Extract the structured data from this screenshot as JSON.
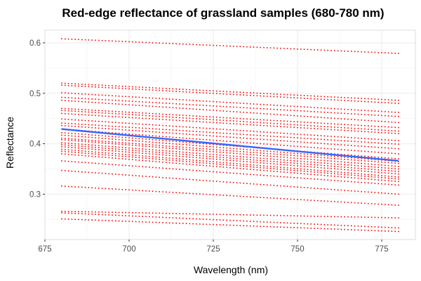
{
  "chart_data": {
    "type": "scatter",
    "title": "Red-edge reflectance of grassland samples (680-780 nm)",
    "xlabel": "Wavelength (nm)",
    "ylabel": "Reflectance",
    "xlim": [
      675,
      785
    ],
    "ylim": [
      0.21,
      0.625
    ],
    "x_ticks": [
      675,
      700,
      725,
      750,
      775
    ],
    "y_ticks": [
      0.3,
      0.4,
      0.5,
      0.6
    ],
    "x_tick_labels": [
      "675",
      "700",
      "725",
      "750",
      "775"
    ],
    "y_tick_labels": [
      "0.3",
      "0.4",
      "0.5",
      "0.6"
    ],
    "x_range": [
      680,
      780
    ],
    "x_step": 1,
    "grid": true,
    "point_color": "#ff0000",
    "fit_color": "#3366ff",
    "series_endpoints": [
      [
        0.608,
        0.579
      ],
      [
        0.52,
        0.486
      ],
      [
        0.516,
        0.48
      ],
      [
        0.501,
        0.462
      ],
      [
        0.492,
        0.454
      ],
      [
        0.486,
        0.442
      ],
      [
        0.47,
        0.432
      ],
      [
        0.466,
        0.425
      ],
      [
        0.46,
        0.42
      ],
      [
        0.449,
        0.406
      ],
      [
        0.441,
        0.399
      ],
      [
        0.436,
        0.39
      ],
      [
        0.429,
        0.38
      ],
      [
        0.422,
        0.37
      ],
      [
        0.417,
        0.365
      ],
      [
        0.411,
        0.361
      ],
      [
        0.408,
        0.355
      ],
      [
        0.402,
        0.35
      ],
      [
        0.398,
        0.345
      ],
      [
        0.394,
        0.34
      ],
      [
        0.389,
        0.334
      ],
      [
        0.385,
        0.33
      ],
      [
        0.38,
        0.325
      ],
      [
        0.366,
        0.318
      ],
      [
        0.347,
        0.3
      ],
      [
        0.316,
        0.278
      ],
      [
        0.266,
        0.253
      ],
      [
        0.263,
        0.233
      ],
      [
        0.251,
        0.226
      ]
    ],
    "fit_line": {
      "x": [
        680,
        780
      ],
      "y": [
        0.429,
        0.366
      ]
    }
  }
}
